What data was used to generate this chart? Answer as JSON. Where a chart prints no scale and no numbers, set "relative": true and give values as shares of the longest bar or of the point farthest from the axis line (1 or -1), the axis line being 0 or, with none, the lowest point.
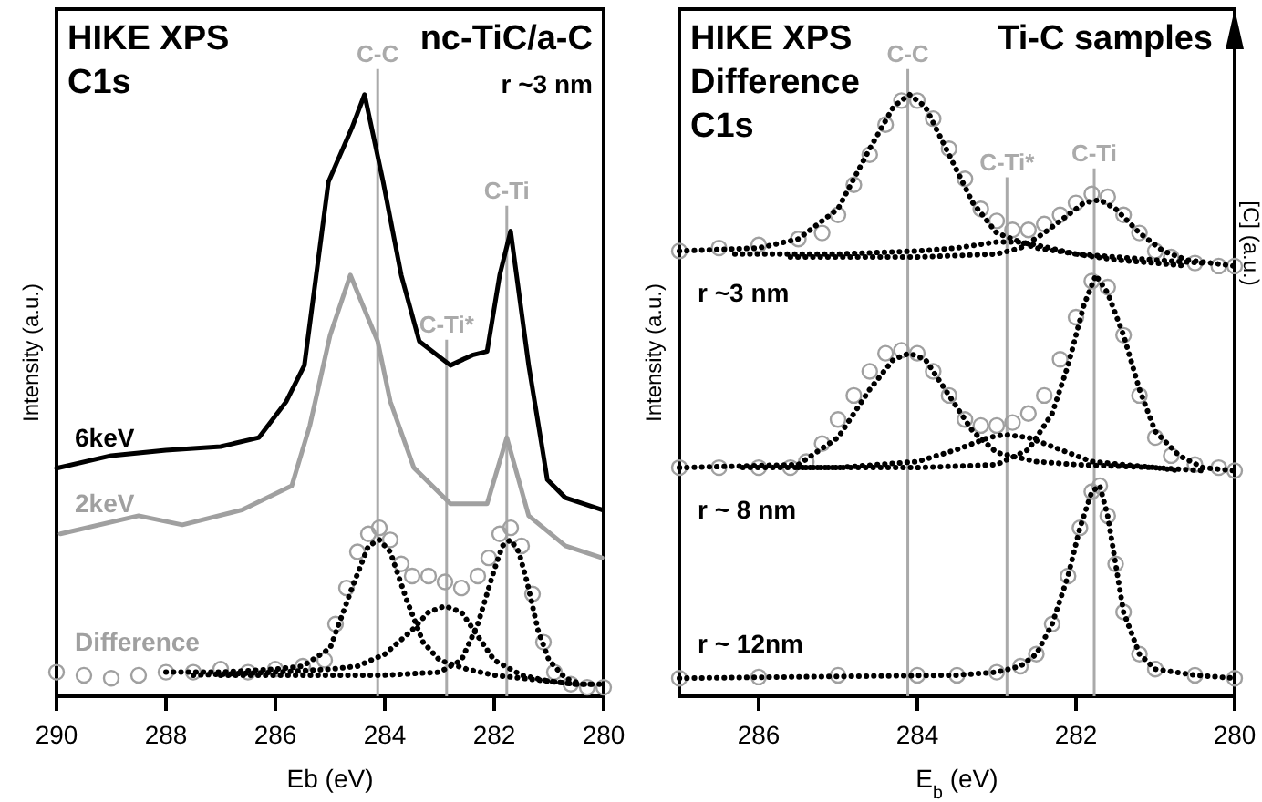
{
  "chart_data": [
    {
      "type": "line",
      "title": "HIKE XPS",
      "subtitle": "C1s",
      "annotations": [
        "nc-TiC/a-C",
        "r ~3 nm"
      ],
      "xlabel": "Eb (eV)",
      "ylabel": "Intensity (a.u.)",
      "relative": true,
      "legend": false,
      "grid": false,
      "xlim": [
        290,
        280
      ],
      "xticks": [
        290,
        288,
        286,
        284,
        282,
        280
      ],
      "ref_lines": [
        {
          "axis": "x",
          "value": 284.13,
          "label": "C-C",
          "color": "#aaaaaa"
        },
        {
          "axis": "x",
          "value": 282.87,
          "label": "C-Ti*",
          "color": "#aaaaaa"
        },
        {
          "axis": "x",
          "value": 281.77,
          "label": "C-Ti",
          "color": "#aaaaaa"
        }
      ],
      "series": [
        {
          "name": "6keV",
          "color": "#000000",
          "x": [
            290,
            289,
            288,
            287,
            286.3,
            285.8,
            285.47,
            285.03,
            284.6,
            284.37,
            284.03,
            283.7,
            283.37,
            282.8,
            282.4,
            282.13,
            281.9,
            281.7,
            281.37,
            281.1,
            281.03,
            280.7,
            280.03
          ],
          "values": [
            0.379,
            0.4,
            0.409,
            0.415,
            0.43,
            0.49,
            0.55,
            0.855,
            0.945,
            1.0,
            0.855,
            0.7,
            0.59,
            0.55,
            0.567,
            0.573,
            0.7,
            0.773,
            0.55,
            0.4,
            0.36,
            0.33,
            0.31
          ]
        },
        {
          "name": "2keV",
          "color": "#a0a0a0",
          "x": [
            289.93,
            288.5,
            287.7,
            286.6,
            285.7,
            285.37,
            285,
            284.63,
            284.13,
            283.9,
            283.47,
            282.8,
            282.13,
            281.77,
            281.37,
            280.7,
            280.03
          ],
          "values": [
            0.27,
            0.3,
            0.285,
            0.31,
            0.35,
            0.45,
            0.6,
            0.7,
            0.59,
            0.49,
            0.38,
            0.32,
            0.32,
            0.43,
            0.3,
            0.25,
            0.23
          ]
        },
        {
          "name": "Difference",
          "type": "scatter",
          "marker": "circle",
          "color": "#a0a0a0",
          "x": [
            290,
            289.5,
            289,
            288.5,
            288,
            287.5,
            287,
            286.5,
            286,
            285.5,
            285.1,
            284.9,
            284.7,
            284.5,
            284.3,
            284.1,
            283.9,
            283.7,
            283.5,
            283.2,
            282.9,
            282.6,
            282.3,
            282.1,
            281.9,
            281.7,
            281.5,
            281.3,
            281.1,
            280.9,
            280.6,
            280.3,
            280
          ],
          "values": [
            0.04,
            0.035,
            0.03,
            0.035,
            0.04,
            0.04,
            0.045,
            0.04,
            0.045,
            0.05,
            0.06,
            0.12,
            0.18,
            0.24,
            0.27,
            0.28,
            0.26,
            0.22,
            0.2,
            0.2,
            0.19,
            0.18,
            0.2,
            0.23,
            0.27,
            0.28,
            0.25,
            0.17,
            0.09,
            0.04,
            0.02,
            0.015,
            0.015
          ]
        },
        {
          "line_style": "dotted",
          "color": "#000000",
          "x": [
            288,
            287,
            286,
            285.5,
            285,
            284.6,
            284.3,
            284.1,
            283.9,
            283.6,
            283.3,
            283,
            282.5,
            282,
            281.5,
            281,
            280.5,
            280
          ],
          "values": [
            0.04,
            0.04,
            0.045,
            0.05,
            0.08,
            0.18,
            0.25,
            0.26,
            0.24,
            0.16,
            0.09,
            0.06,
            0.045,
            0.035,
            0.03,
            0.025,
            0.02,
            0.02
          ]
        },
        {
          "line_style": "dotted",
          "color": "#000000",
          "x": [
            287.5,
            286,
            285,
            284.5,
            284,
            283.5,
            283.2,
            282.9,
            282.6,
            282.3,
            282,
            281.5,
            281,
            280.5
          ],
          "values": [
            0.035,
            0.04,
            0.045,
            0.05,
            0.07,
            0.11,
            0.14,
            0.15,
            0.14,
            0.1,
            0.06,
            0.035,
            0.025,
            0.02
          ]
        },
        {
          "line_style": "dotted",
          "color": "#000000",
          "x": [
            287,
            286,
            284,
            283,
            282.6,
            282.3,
            282,
            281.85,
            281.7,
            281.55,
            281.4,
            281.2,
            281,
            280.7,
            280.4,
            280.2
          ],
          "values": [
            0.035,
            0.035,
            0.035,
            0.04,
            0.06,
            0.12,
            0.21,
            0.25,
            0.26,
            0.24,
            0.19,
            0.11,
            0.06,
            0.03,
            0.02,
            0.02
          ]
        }
      ]
    },
    {
      "type": "scatter",
      "title": "HIKE XPS",
      "subtitle": "Difference C1s",
      "annotations": [
        "Ti-C samples"
      ],
      "xlabel": "E$_{b}$ (eV)",
      "ylabel": "Intensity (a.u.)",
      "y2label": "[C] (a.u.)",
      "relative": true,
      "legend": false,
      "grid": false,
      "xlim": [
        287,
        280
      ],
      "xticks": [
        286,
        284,
        282,
        280
      ],
      "ref_lines": [
        {
          "axis": "x",
          "value": 284.12,
          "label": "C-C",
          "color": "#aaaaaa"
        },
        {
          "axis": "x",
          "value": 282.87,
          "label": "C-Ti*",
          "color": "#aaaaaa"
        },
        {
          "axis": "x",
          "value": 281.77,
          "label": "C-Ti",
          "color": "#aaaaaa"
        }
      ],
      "series": [
        {
          "name": "r ~3 nm",
          "marker": "circle",
          "color": "#a0a0a0",
          "x": [
            287,
            286.5,
            286,
            285.5,
            285.2,
            285,
            284.8,
            284.6,
            284.4,
            284.2,
            284,
            283.8,
            283.6,
            283.4,
            283.2,
            283,
            282.8,
            282.6,
            282.4,
            282.2,
            282,
            281.8,
            281.6,
            281.4,
            281.2,
            281,
            280.8,
            280.5,
            280.2,
            280
          ],
          "values": [
            0.74,
            0.745,
            0.75,
            0.76,
            0.77,
            0.8,
            0.85,
            0.9,
            0.95,
            0.99,
            0.99,
            0.96,
            0.91,
            0.86,
            0.81,
            0.79,
            0.775,
            0.775,
            0.785,
            0.8,
            0.82,
            0.835,
            0.83,
            0.8,
            0.77,
            0.74,
            0.73,
            0.72,
            0.715,
            0.715
          ]
        },
        {
          "type": "line",
          "line_style": "dotted",
          "color": "#000000",
          "x": [
            287,
            286,
            285.5,
            285,
            284.6,
            284.3,
            284.1,
            283.9,
            283.6,
            283.3,
            283,
            282.5,
            282,
            281,
            280.4
          ],
          "values": [
            0.74,
            0.745,
            0.76,
            0.81,
            0.91,
            0.98,
            1.0,
            0.98,
            0.9,
            0.82,
            0.77,
            0.745,
            0.735,
            0.725,
            0.72
          ]
        },
        {
          "type": "line",
          "line_style": "dotted",
          "color": "#000000",
          "x": [
            286.3,
            285,
            284,
            283.5,
            283,
            282.7,
            282.5,
            282,
            281.5,
            281,
            280.6
          ],
          "values": [
            0.735,
            0.735,
            0.74,
            0.745,
            0.755,
            0.755,
            0.75,
            0.735,
            0.725,
            0.72,
            0.715
          ]
        },
        {
          "type": "line",
          "line_style": "dotted",
          "color": "#000000",
          "x": [
            285.6,
            285,
            284,
            283,
            282.7,
            282.4,
            282.1,
            281.9,
            281.7,
            281.5,
            281.2,
            280.9,
            280.6,
            280.3,
            280
          ],
          "values": [
            0.73,
            0.73,
            0.73,
            0.735,
            0.745,
            0.77,
            0.8,
            0.82,
            0.825,
            0.81,
            0.77,
            0.74,
            0.725,
            0.72,
            0.715
          ]
        },
        {
          "name": "r ~ 8 nm",
          "marker": "circle",
          "color": "#a0a0a0",
          "x": [
            287,
            286.5,
            286,
            285.6,
            285.4,
            285.2,
            285,
            284.8,
            284.6,
            284.4,
            284.2,
            284,
            283.8,
            283.6,
            283.4,
            283.2,
            283,
            282.8,
            282.6,
            282.4,
            282.2,
            282,
            281.8,
            281.6,
            281.4,
            281.2,
            281,
            280.8,
            280.5,
            280.2,
            280
          ],
          "values": [
            0.38,
            0.38,
            0.38,
            0.38,
            0.39,
            0.42,
            0.46,
            0.5,
            0.54,
            0.57,
            0.575,
            0.57,
            0.54,
            0.5,
            0.46,
            0.45,
            0.45,
            0.455,
            0.47,
            0.5,
            0.56,
            0.63,
            0.69,
            0.68,
            0.6,
            0.5,
            0.43,
            0.4,
            0.385,
            0.38,
            0.375
          ]
        },
        {
          "type": "line",
          "line_style": "dotted",
          "color": "#000000",
          "x": [
            287,
            285.5,
            285,
            284.6,
            284.3,
            284.1,
            283.9,
            283.6,
            283.3,
            283,
            282.5,
            282,
            281,
            280.4
          ],
          "values": [
            0.38,
            0.385,
            0.43,
            0.51,
            0.56,
            0.57,
            0.56,
            0.5,
            0.44,
            0.405,
            0.39,
            0.385,
            0.38,
            0.375
          ]
        },
        {
          "type": "line",
          "line_style": "dotted",
          "color": "#000000",
          "x": [
            286.2,
            285,
            284,
            283.5,
            283.1,
            282.9,
            282.6,
            282.2,
            281.8,
            281,
            280.7
          ],
          "values": [
            0.38,
            0.38,
            0.39,
            0.41,
            0.43,
            0.435,
            0.43,
            0.41,
            0.39,
            0.38,
            0.375
          ]
        },
        {
          "type": "line",
          "line_style": "dotted",
          "color": "#000000",
          "x": [
            285.5,
            284,
            283,
            282.6,
            282.3,
            282.1,
            281.9,
            281.75,
            281.6,
            281.4,
            281.2,
            281,
            280.7,
            280.4,
            280
          ],
          "values": [
            0.38,
            0.38,
            0.385,
            0.41,
            0.47,
            0.55,
            0.65,
            0.7,
            0.67,
            0.6,
            0.51,
            0.44,
            0.4,
            0.38,
            0.375
          ]
        },
        {
          "name": "r ~ 12nm",
          "marker": "circle",
          "color": "#a0a0a0",
          "x": [
            287,
            286,
            285,
            284,
            283.5,
            283,
            282.7,
            282.5,
            282.3,
            282.1,
            281.95,
            281.8,
            281.7,
            281.6,
            281.5,
            281.4,
            281.2,
            281,
            280.5,
            280
          ],
          "values": [
            0.03,
            0.032,
            0.035,
            0.035,
            0.035,
            0.04,
            0.05,
            0.07,
            0.12,
            0.2,
            0.28,
            0.34,
            0.35,
            0.3,
            0.22,
            0.14,
            0.07,
            0.045,
            0.035,
            0.03
          ]
        },
        {
          "type": "line",
          "line_style": "dotted",
          "color": "#000000",
          "x": [
            287,
            285,
            283.5,
            283,
            282.7,
            282.5,
            282.3,
            282.1,
            281.95,
            281.8,
            281.7,
            281.6,
            281.5,
            281.4,
            281.2,
            281,
            280.5,
            280
          ],
          "values": [
            0.03,
            0.033,
            0.035,
            0.04,
            0.05,
            0.07,
            0.12,
            0.2,
            0.28,
            0.34,
            0.35,
            0.3,
            0.22,
            0.14,
            0.07,
            0.045,
            0.035,
            0.03
          ]
        }
      ]
    }
  ]
}
